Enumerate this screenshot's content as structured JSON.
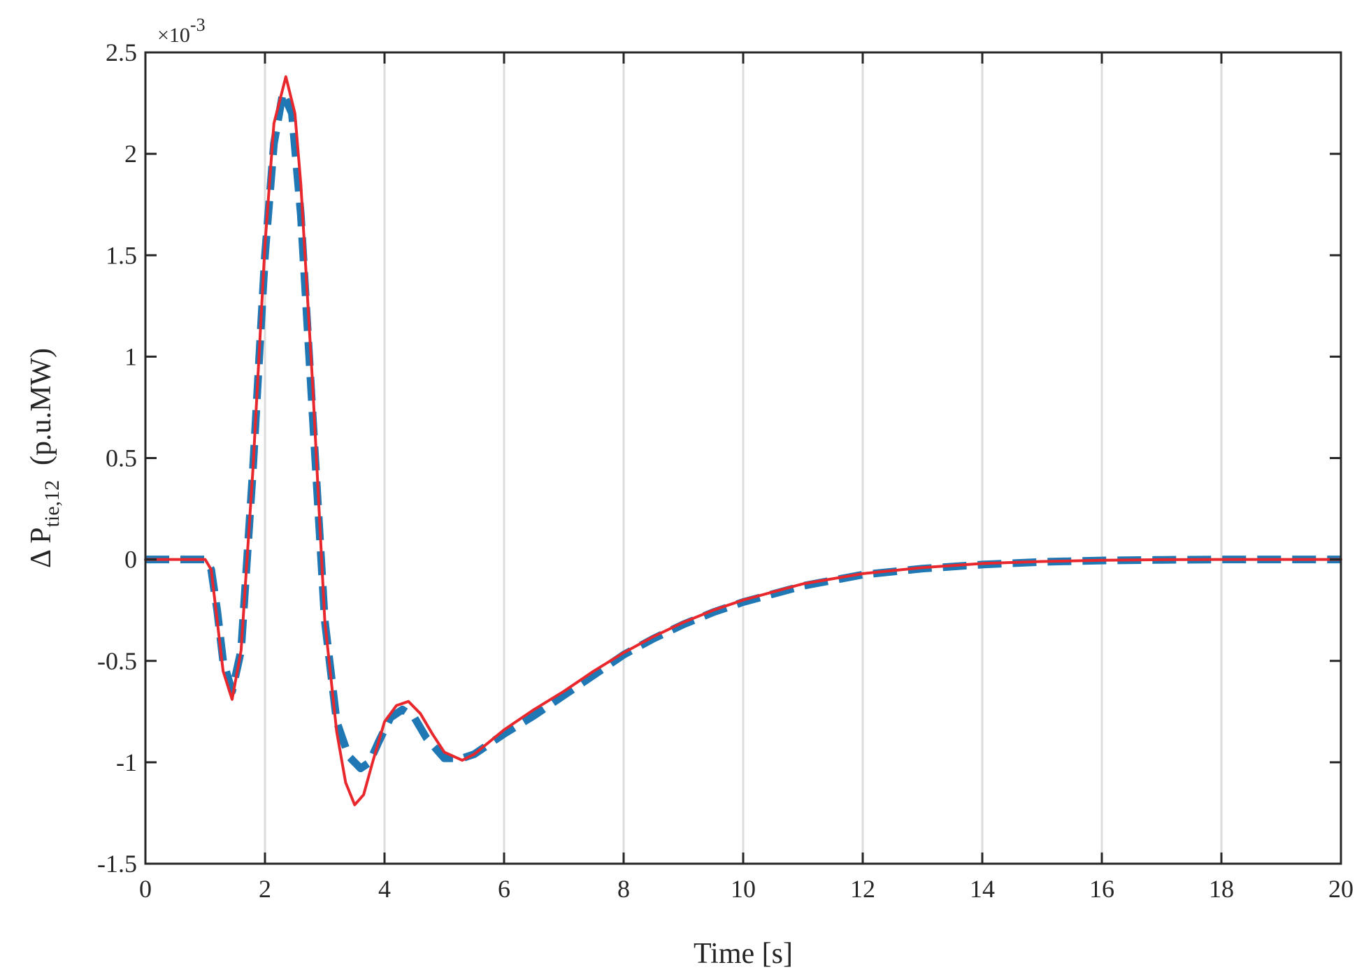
{
  "chart_data": {
    "type": "line",
    "xlabel": "Time [s]",
    "ylabel": {
      "prefix": "Δ  P",
      "subscript": "tie,12",
      "unit": "(p.u.MW)"
    },
    "y_exponent": {
      "base": "×10",
      "power": "-3"
    },
    "xlim": [
      0,
      20
    ],
    "ylim": [
      -1.5,
      2.5
    ],
    "xticks": [
      0,
      2,
      4,
      6,
      8,
      10,
      12,
      14,
      16,
      18,
      20
    ],
    "yticks": [
      -1.5,
      -1,
      -0.5,
      0,
      0.5,
      1,
      1.5,
      2,
      2.5
    ],
    "grid": "x-only",
    "legend": "none",
    "series": [
      {
        "style": "dashed",
        "color": "#1f77b4",
        "x": [
          0,
          0.5,
          1.0,
          1.1,
          1.2,
          1.3,
          1.45,
          1.6,
          1.8,
          2.0,
          2.15,
          2.3,
          2.45,
          2.6,
          2.8,
          3.0,
          3.2,
          3.4,
          3.6,
          3.75,
          3.9,
          4.1,
          4.3,
          4.5,
          4.7,
          5.0,
          5.3,
          5.5,
          6.0,
          6.5,
          7.0,
          7.5,
          8.0,
          8.5,
          9.0,
          9.5,
          10.0,
          11.0,
          12.0,
          13.0,
          14.0,
          15.0,
          16.0,
          17.0,
          18.0,
          19.0,
          20.0
        ],
        "y": [
          0,
          0,
          0,
          -0.05,
          -0.25,
          -0.5,
          -0.65,
          -0.45,
          0.45,
          1.5,
          2.05,
          2.3,
          2.2,
          1.7,
          0.7,
          -0.3,
          -0.8,
          -0.97,
          -1.03,
          -1.0,
          -0.9,
          -0.78,
          -0.74,
          -0.78,
          -0.88,
          -0.98,
          -0.98,
          -0.96,
          -0.86,
          -0.77,
          -0.67,
          -0.57,
          -0.47,
          -0.39,
          -0.32,
          -0.26,
          -0.21,
          -0.13,
          -0.075,
          -0.045,
          -0.025,
          -0.012,
          -0.005,
          -0.002,
          0.0,
          0.0,
          0.0
        ]
      },
      {
        "style": "solid",
        "color": "#e8282d",
        "x": [
          0,
          0.5,
          1.0,
          1.1,
          1.2,
          1.3,
          1.45,
          1.6,
          1.8,
          2.0,
          2.15,
          2.35,
          2.5,
          2.6,
          2.8,
          3.0,
          3.2,
          3.35,
          3.5,
          3.65,
          3.8,
          4.0,
          4.2,
          4.4,
          4.6,
          4.8,
          5.0,
          5.3,
          5.5,
          6.0,
          6.5,
          7.0,
          7.5,
          8.0,
          8.5,
          9.0,
          9.5,
          10.0,
          11.0,
          12.0,
          13.0,
          14.0,
          15.0,
          16.0,
          17.0,
          18.0,
          19.0,
          20.0
        ],
        "y": [
          0,
          0,
          0,
          -0.05,
          -0.3,
          -0.55,
          -0.69,
          -0.45,
          0.45,
          1.55,
          2.15,
          2.38,
          2.2,
          1.85,
          0.85,
          -0.3,
          -0.85,
          -1.1,
          -1.21,
          -1.16,
          -1.0,
          -0.8,
          -0.72,
          -0.7,
          -0.76,
          -0.86,
          -0.95,
          -0.99,
          -0.96,
          -0.84,
          -0.74,
          -0.65,
          -0.55,
          -0.46,
          -0.38,
          -0.31,
          -0.25,
          -0.2,
          -0.12,
          -0.07,
          -0.04,
          -0.02,
          -0.01,
          -0.004,
          -0.001,
          0.0,
          0.0,
          0.0
        ]
      }
    ]
  }
}
